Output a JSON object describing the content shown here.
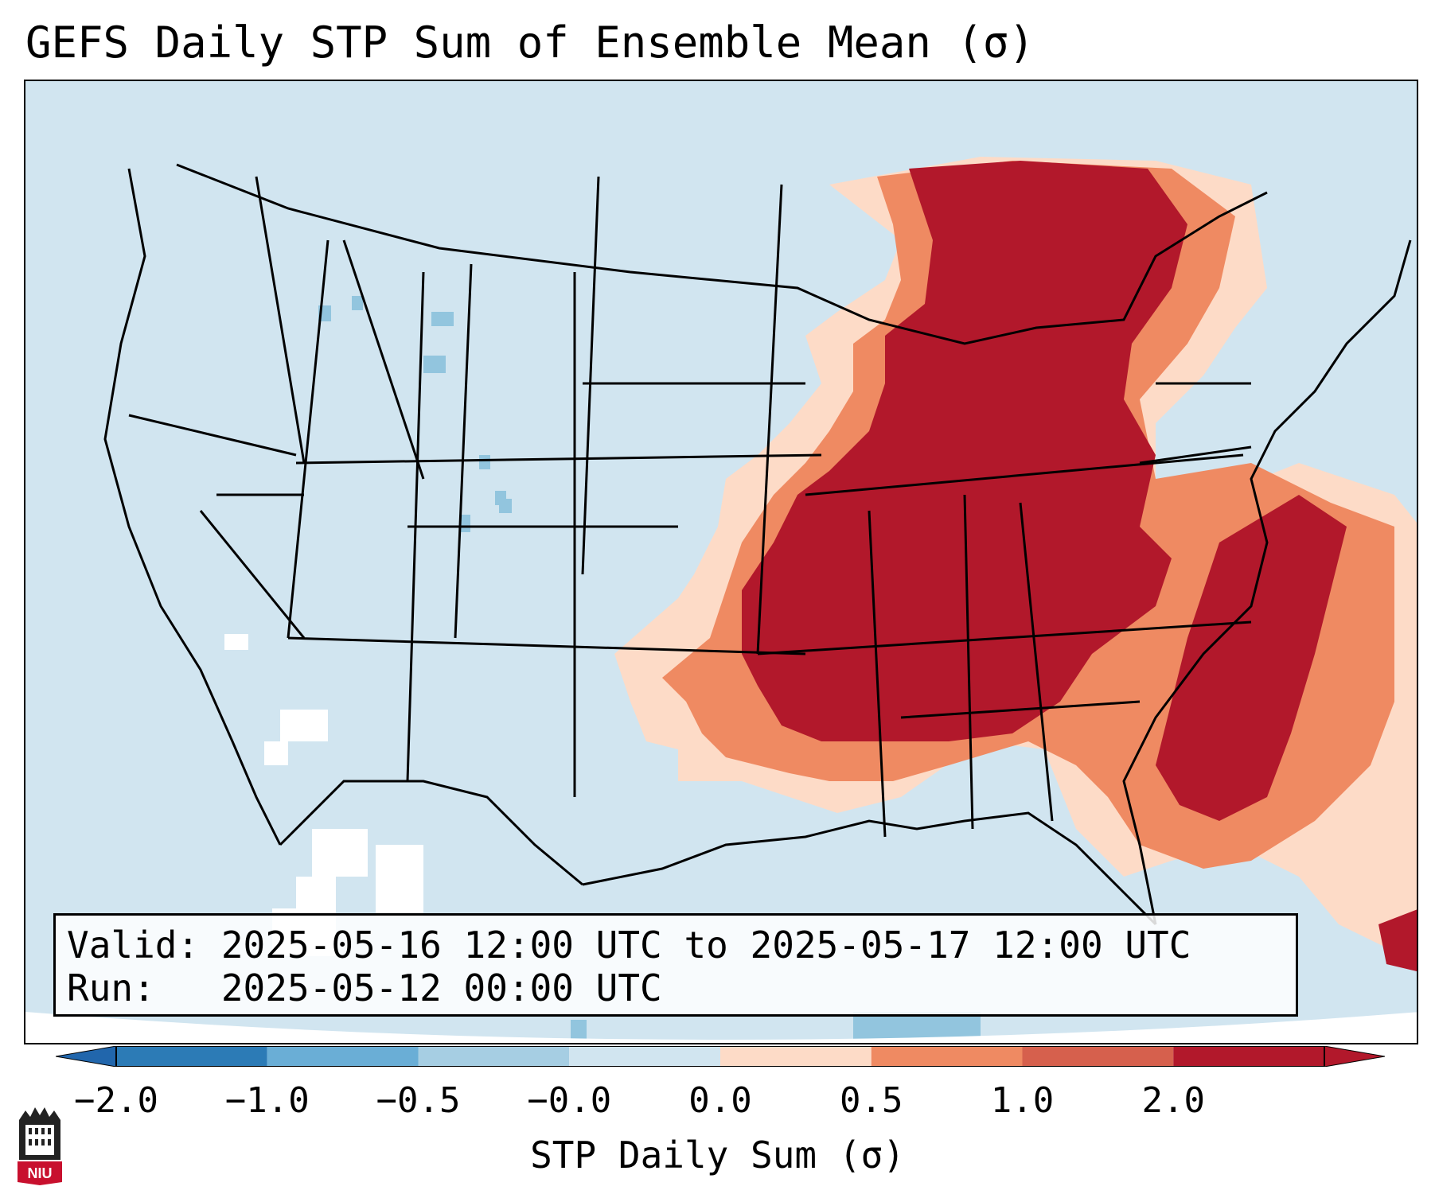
{
  "title": "GEFS Daily STP Sum of Ensemble Mean (σ)",
  "info": {
    "valid_line": "Valid: 2025-05-16 12:00 UTC to 2025-05-17 12:00 UTC",
    "run_line": "Run:   2025-05-12 00:00 UTC"
  },
  "colorbar": {
    "label": "STP Daily Sum (σ)",
    "ticks": [
      "−2.0",
      "−1.0",
      "−0.5",
      "−0.0",
      "0.0",
      "0.5",
      "1.0",
      "2.0"
    ],
    "colors": [
      "#2c7bb6",
      "#6aaed6",
      "#a6cee3",
      "#d1e5f0",
      "#fddbc7",
      "#ef8a62",
      "#d6604d",
      "#b2182b"
    ],
    "under_color": "#2166ac",
    "over_color": "#b2182b"
  },
  "map": {
    "background_color": "#d1e5f0",
    "region": "Contiguous United States",
    "high_anomaly_region": "Central and Eastern U.S."
  },
  "logo": {
    "text": "NIU"
  }
}
